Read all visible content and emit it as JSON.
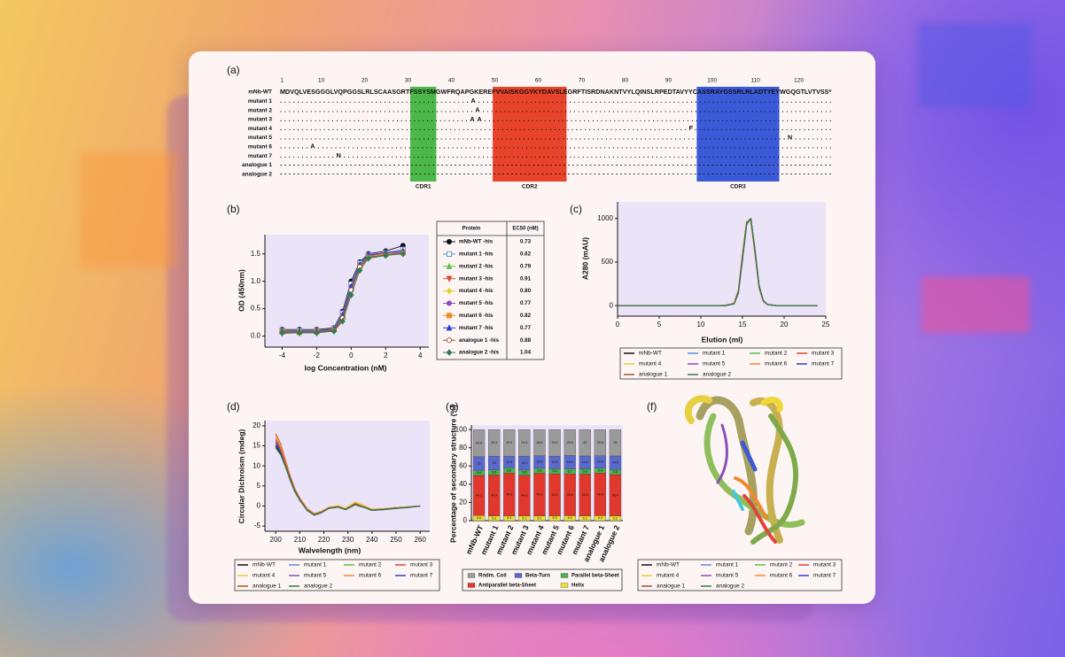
{
  "panel_labels": [
    "(a)",
    "(b)",
    "(c)",
    "(d)",
    "(e)",
    "(f)"
  ],
  "alignment": {
    "ruler": [
      1,
      10,
      20,
      30,
      40,
      50,
      60,
      70,
      80,
      90,
      100,
      110,
      120
    ],
    "rows": [
      {
        "name": "mNb-WT",
        "sequence": "MDVQLVESGGGLVQPGGSLRLSCAASGRTFSSYSMGWFRQAPGKEREFVVAISKGGYKYDAVSLEGRFTISRDNAKNTVYLQINSLRPEDTAVYYCASSRAYGSSRLRLADTYEYWGQGTLVTVSS*"
      },
      {
        "name": "mutant 1",
        "sequence": "............................................A.................................................................................."
      },
      {
        "name": "mutant 2",
        "sequence": ".............................................A................................................................................."
      },
      {
        "name": "mutant 3",
        "sequence": "............................................AA................................................................................."
      },
      {
        "name": "mutant 4",
        "sequence": "..............................................................................................F................................"
      },
      {
        "name": "mutant 5",
        "sequence": ".....................................................................................................................N........."
      },
      {
        "name": "mutant 6",
        "sequence": ".......A......................................................................................................................."
      },
      {
        "name": "mutant 7",
        "sequence": ".............N................................................................................................................."
      },
      {
        "name": "analogue 1",
        "sequence": "-------------------------------------------------------------------------------------------------------------------------------"
      },
      {
        "name": "analogue 2",
        "sequence": "-------------------------------------------------------------------------------------------------------------------------------"
      }
    ],
    "regions": [
      {
        "label": "CDR1",
        "color": "#4cb84a"
      },
      {
        "label": "CDR2",
        "color": "#e8442c"
      },
      {
        "label": "CDR3",
        "color": "#3a5ad8"
      }
    ]
  },
  "chart_data": [
    {
      "type": "line",
      "markers": true,
      "x_label": "log Concentration (nM)",
      "y_label": "OD (450nm)",
      "x": [
        -4,
        -3,
        -2,
        -1,
        -0.5,
        0,
        0.5,
        1,
        2,
        3
      ],
      "xlim": [
        -5,
        4.5
      ],
      "xticks": [
        -4,
        -2,
        0,
        2,
        4
      ],
      "ylim": [
        -0.2,
        1.85
      ],
      "yticks": [
        {
          "value": 0,
          "label": "0.0"
        },
        0.5,
        {
          "value": 1,
          "label": "1.0"
        },
        1.5
      ],
      "legend_headers": [
        "Protein",
        "EC50 (nM)"
      ],
      "series": [
        {
          "name": "mNb-WT -his",
          "ec50": "0.73",
          "color": "#111111",
          "marker": "circle",
          "values": [
            0.12,
            0.12,
            0.12,
            0.15,
            0.45,
            1.0,
            1.35,
            1.5,
            1.55,
            1.65
          ]
        },
        {
          "name": "mutant 1 -his",
          "ec50": "0.62",
          "color": "#5b8fd6",
          "marker": "square-open",
          "values": [
            0.1,
            0.1,
            0.1,
            0.14,
            0.42,
            0.95,
            1.33,
            1.48,
            1.52,
            1.58
          ]
        },
        {
          "name": "mutant 2 -his",
          "ec50": "0.79",
          "color": "#5cbf4a",
          "marker": "triangle",
          "values": [
            0.1,
            0.09,
            0.1,
            0.13,
            0.38,
            0.9,
            1.3,
            1.47,
            1.52,
            1.55
          ]
        },
        {
          "name": "mutant 3 -his",
          "ec50": "0.91",
          "color": "#e0443a",
          "marker": "triangle-down",
          "values": [
            0.05,
            0.06,
            0.06,
            0.1,
            0.3,
            0.82,
            1.25,
            1.43,
            1.48,
            1.5
          ]
        },
        {
          "name": "mutant 4 -his",
          "ec50": "0.80",
          "color": "#e6cf2e",
          "marker": "diamond",
          "values": [
            0.08,
            0.08,
            0.08,
            0.12,
            0.36,
            0.88,
            1.3,
            1.46,
            1.5,
            1.53
          ]
        },
        {
          "name": "mutant 5 -his",
          "ec50": "0.77",
          "color": "#8a4fb8",
          "marker": "circle",
          "values": [
            0.09,
            0.08,
            0.09,
            0.12,
            0.38,
            0.9,
            1.3,
            1.47,
            1.5,
            1.54
          ]
        },
        {
          "name": "mutant 6 -his",
          "ec50": "0.82",
          "color": "#f08a2c",
          "marker": "square",
          "values": [
            0.08,
            0.07,
            0.08,
            0.12,
            0.35,
            0.86,
            1.28,
            1.45,
            1.5,
            1.52
          ]
        },
        {
          "name": "mutant 7 -his",
          "ec50": "0.77",
          "color": "#2a3fd0",
          "marker": "triangle",
          "values": [
            0.09,
            0.09,
            0.09,
            0.13,
            0.38,
            0.9,
            1.3,
            1.48,
            1.52,
            1.55
          ]
        },
        {
          "name": "analogue 1 -his",
          "ec50": "0.88",
          "color": "#a0522d",
          "marker": "circle-open",
          "values": [
            0.07,
            0.07,
            0.07,
            0.11,
            0.33,
            0.84,
            1.26,
            1.44,
            1.48,
            1.52
          ]
        },
        {
          "name": "analogue 2 -his",
          "ec50": "1.04",
          "color": "#2e7d4f",
          "marker": "diamond",
          "values": [
            0.06,
            0.06,
            0.06,
            0.09,
            0.27,
            0.75,
            1.2,
            1.42,
            1.47,
            1.5
          ]
        }
      ]
    },
    {
      "type": "line",
      "x_label": "Elution (ml)",
      "y_label": "A280 (mAU)",
      "x": [
        0,
        5,
        10,
        12,
        13,
        14,
        14.5,
        15,
        15.5,
        16,
        16.5,
        17,
        17.5,
        18,
        19,
        20,
        24
      ],
      "xlim": [
        0,
        25
      ],
      "xticks": [
        0,
        5,
        10,
        15,
        20,
        25
      ],
      "ylim": [
        -120,
        1190
      ],
      "yticks": [
        0,
        500,
        1000
      ],
      "series": [
        {
          "name": "mNb-WT",
          "color": "#111111",
          "values": [
            0,
            0,
            0,
            0,
            2,
            25,
            160,
            560,
            950,
            1000,
            620,
            210,
            55,
            12,
            2,
            0,
            0
          ]
        },
        {
          "name": "mutant 1",
          "color": "#5b8fd6",
          "values": [
            0,
            0,
            0,
            0,
            2,
            22,
            150,
            540,
            940,
            990,
            630,
            220,
            58,
            13,
            2,
            0,
            0
          ]
        },
        {
          "name": "mutant 2",
          "color": "#5cbf4a",
          "values": [
            0,
            0,
            0,
            0,
            3,
            28,
            170,
            580,
            960,
            980,
            600,
            200,
            50,
            11,
            2,
            0,
            0
          ]
        },
        {
          "name": "mutant 3",
          "color": "#e0443a",
          "values": [
            0,
            0,
            0,
            0,
            2,
            24,
            155,
            550,
            945,
            995,
            625,
            215,
            56,
            12,
            2,
            0,
            0
          ]
        },
        {
          "name": "mutant 4",
          "color": "#e6cf2e",
          "values": [
            0,
            0,
            0,
            0,
            3,
            30,
            180,
            600,
            970,
            970,
            590,
            195,
            48,
            10,
            1,
            0,
            0
          ]
        },
        {
          "name": "mutant 5",
          "color": "#8a4fb8",
          "values": [
            0,
            0,
            0,
            0,
            2,
            20,
            140,
            520,
            930,
            1000,
            650,
            230,
            60,
            14,
            2,
            0,
            0
          ]
        },
        {
          "name": "mutant 6",
          "color": "#f08a2c",
          "values": [
            0,
            0,
            0,
            0,
            2,
            26,
            165,
            570,
            955,
            985,
            610,
            205,
            52,
            11,
            2,
            0,
            0
          ]
        },
        {
          "name": "mutant 7",
          "color": "#2a3fd0",
          "values": [
            0,
            0,
            0,
            0,
            2,
            23,
            150,
            545,
            940,
            995,
            630,
            218,
            57,
            12,
            2,
            0,
            0
          ]
        },
        {
          "name": "analogue 1",
          "color": "#a0522d",
          "values": [
            0,
            0,
            0,
            0,
            3,
            27,
            168,
            575,
            958,
            982,
            605,
            202,
            51,
            11,
            2,
            0,
            0
          ]
        },
        {
          "name": "analogue 2",
          "color": "#2e7d4f",
          "values": [
            0,
            0,
            0,
            0,
            2,
            21,
            145,
            530,
            935,
            998,
            640,
            225,
            59,
            13,
            2,
            0,
            0
          ]
        }
      ]
    },
    {
      "type": "line",
      "x_label": "Walvelength (nm)",
      "y_label": "Circular Dichroism (mdeg)",
      "x": [
        200,
        202,
        204,
        206,
        208,
        210,
        213,
        216,
        219,
        222,
        226,
        229,
        233,
        237,
        240,
        245,
        250,
        255,
        260
      ],
      "xlim": [
        195.5,
        264
      ],
      "xticks": [
        200,
        210,
        220,
        230,
        240,
        250,
        260
      ],
      "ylim": [
        -6.3,
        21.3
      ],
      "yticks": [
        -5,
        0,
        5,
        10,
        15,
        20
      ],
      "series": [
        {
          "name": "mNb-WT",
          "color": "#111111",
          "values": [
            15,
            13,
            10,
            6.5,
            3.5,
            1.5,
            -1,
            -2,
            -1.5,
            -0.5,
            -0.2,
            -0.8,
            0.5,
            -0.3,
            -1,
            -0.8,
            -0.5,
            -0.3,
            0
          ]
        },
        {
          "name": "mutant 1",
          "color": "#5b8fd6",
          "values": [
            16,
            14,
            10.5,
            7,
            4,
            1.8,
            -0.8,
            -2,
            -1.4,
            -0.4,
            -0.1,
            -0.7,
            0.6,
            -0.2,
            -0.9,
            -0.7,
            -0.5,
            -0.3,
            0
          ]
        },
        {
          "name": "mutant 2",
          "color": "#5cbf4a",
          "values": [
            17,
            15,
            11,
            7,
            4,
            1.8,
            -0.8,
            -2.1,
            -1.5,
            -0.5,
            -0.1,
            -0.8,
            0.8,
            -0.2,
            -1,
            -0.8,
            -0.5,
            -0.3,
            0
          ]
        },
        {
          "name": "mutant 3",
          "color": "#e0443a",
          "values": [
            18,
            15.5,
            11.5,
            7.5,
            4.2,
            2,
            -0.6,
            -1.9,
            -1.4,
            -0.4,
            0,
            -0.7,
            0.7,
            -0.1,
            -0.9,
            -0.7,
            -0.4,
            -0.2,
            0
          ]
        },
        {
          "name": "mutant 4",
          "color": "#e6cf2e",
          "values": [
            17.5,
            15,
            11,
            7.2,
            4,
            1.9,
            -0.7,
            -2,
            -1.3,
            -0.3,
            0.1,
            -0.6,
            1,
            0,
            -0.8,
            -0.7,
            -0.4,
            -0.2,
            0
          ]
        },
        {
          "name": "mutant 5",
          "color": "#8a4fb8",
          "values": [
            16.5,
            14.5,
            10.8,
            7,
            3.9,
            1.7,
            -0.9,
            -2.1,
            -1.5,
            -0.5,
            -0.2,
            -0.8,
            0.4,
            -0.3,
            -1,
            -0.8,
            -0.5,
            -0.3,
            0
          ]
        },
        {
          "name": "mutant 6",
          "color": "#f08a2c",
          "values": [
            17,
            14.8,
            11,
            7.1,
            4,
            1.8,
            -0.8,
            -2,
            -1.4,
            -0.4,
            -0.1,
            -0.7,
            0.6,
            -0.2,
            -0.9,
            -0.7,
            -0.5,
            -0.3,
            0
          ]
        },
        {
          "name": "mutant 7",
          "color": "#2a3fd0",
          "values": [
            15.5,
            13.5,
            10.2,
            6.8,
            3.8,
            1.6,
            -1,
            -2.2,
            -1.6,
            -0.6,
            -0.3,
            -0.9,
            0.3,
            -0.4,
            -1.1,
            -0.9,
            -0.6,
            -0.3,
            0
          ]
        },
        {
          "name": "analogue 1",
          "color": "#a0522d",
          "values": [
            16,
            14,
            10.5,
            7,
            3.9,
            1.7,
            -0.9,
            -2.1,
            -1.5,
            -0.5,
            -0.2,
            -0.8,
            0.5,
            -0.3,
            -1,
            -0.8,
            -0.5,
            -0.3,
            0
          ]
        },
        {
          "name": "analogue 2",
          "color": "#2e7d4f",
          "values": [
            14.5,
            12.8,
            9.8,
            6.4,
            3.5,
            1.4,
            -1.1,
            -2.3,
            -1.7,
            -0.6,
            -0.3,
            -0.9,
            0.3,
            -0.4,
            -1.1,
            -0.9,
            -0.6,
            -0.4,
            0
          ]
        }
      ]
    },
    {
      "type": "bar",
      "stacked": true,
      "y_label": "Percentage of secondary structure (%)",
      "categories": [
        "mNb-WT",
        "mutant 1",
        "mutant 2",
        "mutant 3",
        "mutant 4",
        "mutant 5",
        "mutant 6",
        "mutant 7",
        "analogue 1",
        "analogue 2"
      ],
      "ylim": [
        0,
        105
      ],
      "yticks": [
        0,
        20,
        40,
        60,
        80,
        100
      ],
      "series": [
        {
          "name": "Helix",
          "color": "#e8e03a",
          "values": [
            5.5,
            5.2,
            5.3,
            5.1,
            5.1,
            5.3,
            5.4,
            5.2,
            5.4,
            5.2
          ]
        },
        {
          "name": "Antiparallel beta-Sheet",
          "color": "#e0382c",
          "values": [
            44.1,
            44.9,
            46.9,
            44.9,
            46.9,
            46.1,
            45.8,
            45.8,
            46.8,
            45.4
          ]
        },
        {
          "name": "Parallel beta-Sheet",
          "color": "#4caf50",
          "values": [
            5.6,
            5.5,
            5.8,
            5.5,
            5.6,
            5.6,
            5.7,
            5.8,
            5.4,
            5.5
          ]
        },
        {
          "name": "Beta-Turn",
          "color": "#5a6acb",
          "values": [
            15.0,
            15.0,
            12.6,
            15.1,
            13.6,
            13.8,
            14.6,
            14.2,
            13.6,
            14.9
          ]
        },
        {
          "name": "Rndm. Coil",
          "color": "#9a9a9a",
          "values": [
            29.8,
            29.4,
            29.4,
            29.4,
            28.8,
            29.2,
            28.5,
            29.0,
            28.8,
            29.0
          ]
        }
      ]
    }
  ],
  "structure": {
    "legend": [
      {
        "name": "mNb-WT",
        "color": "#111111"
      },
      {
        "name": "mutant 1",
        "color": "#5b8fd6"
      },
      {
        "name": "mutant 2",
        "color": "#5cbf4a"
      },
      {
        "name": "mutant 3",
        "color": "#e0443a"
      },
      {
        "name": "mutant 4",
        "color": "#e6cf2e"
      },
      {
        "name": "mutant 5",
        "color": "#8a4fb8"
      },
      {
        "name": "mutant 6",
        "color": "#f08a2c"
      },
      {
        "name": "mutant 7",
        "color": "#2a3fd0"
      },
      {
        "name": "analogue 1",
        "color": "#a0522d"
      },
      {
        "name": "analogue 2",
        "color": "#2e7d4f"
      }
    ]
  }
}
